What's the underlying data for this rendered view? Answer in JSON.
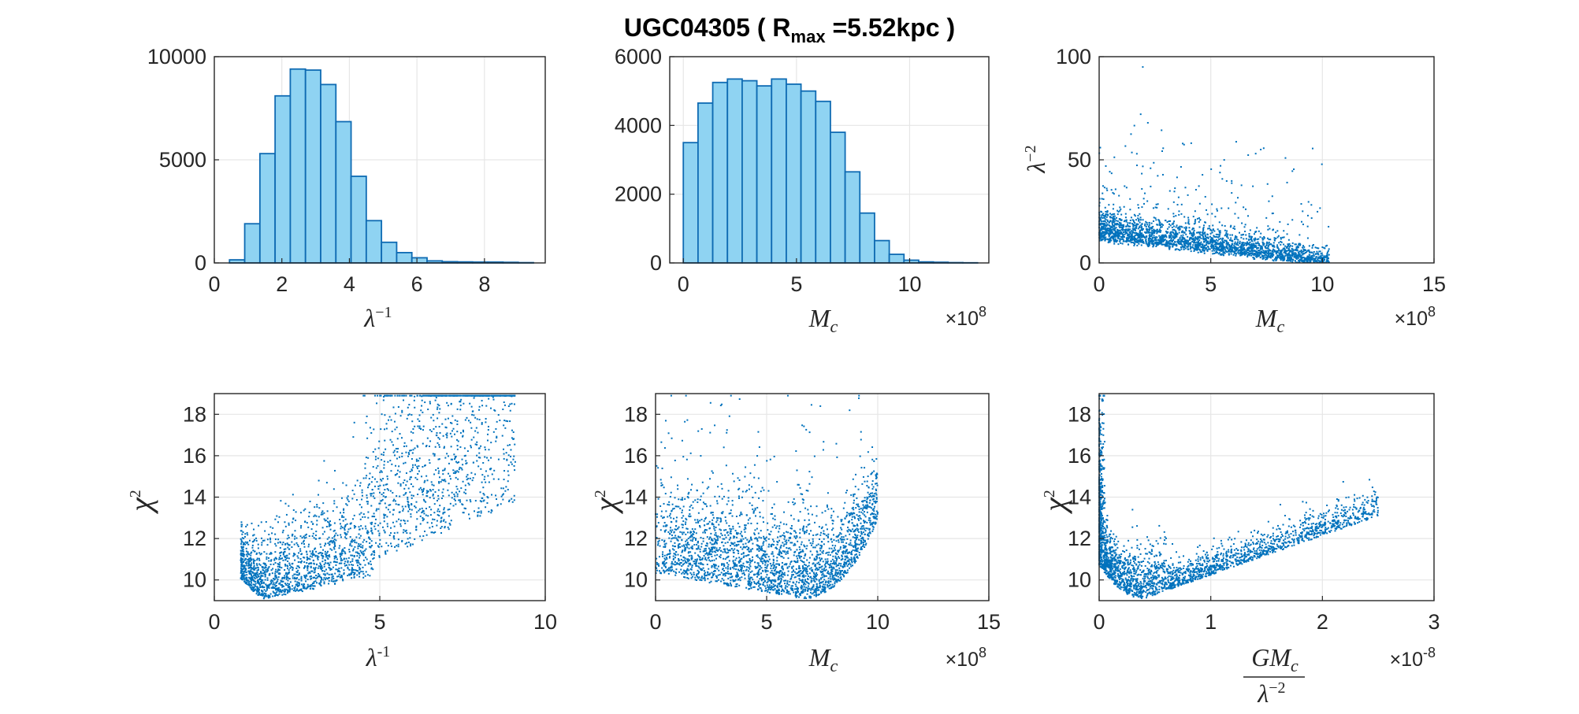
{
  "figure_title": {
    "prefix": "UGC04305  (  R",
    "subscript": "max",
    "suffix": "  =5.52kpc  )"
  },
  "colors": {
    "bar_fill": "#8fd3f2",
    "bar_edge": "#0f6bb3",
    "scatter": "#0072bd",
    "grid": "#e6e6e6",
    "axes": "#262626"
  },
  "chart_data": [
    {
      "id": "hist-lambda-inv",
      "type": "bar",
      "xlabel_base": "λ",
      "xlabel_sup": "−1",
      "bin_width": 0.45,
      "bin_starts": [
        0.45,
        0.9,
        1.35,
        1.8,
        2.25,
        2.7,
        3.15,
        3.6,
        4.05,
        4.5,
        4.95,
        5.4,
        5.85,
        6.3,
        6.75,
        7.2,
        7.65,
        8.1,
        8.55,
        9.0
      ],
      "values": [
        150,
        1900,
        5300,
        8100,
        9400,
        9350,
        8650,
        6850,
        4200,
        2050,
        1000,
        500,
        250,
        100,
        60,
        50,
        40,
        40,
        30,
        15
      ],
      "xlim": [
        0,
        9.8
      ],
      "ylim": [
        0,
        10000
      ],
      "xticks": [
        0,
        2,
        4,
        6,
        8
      ],
      "xtick_labels": [
        "0",
        "2",
        "4",
        "6",
        "8"
      ],
      "yticks": [
        0,
        5000,
        10000
      ],
      "ytick_labels": [
        "0",
        "5000",
        "10000"
      ],
      "grid": true
    },
    {
      "id": "hist-mc",
      "type": "bar",
      "xlabel_base": "M",
      "xlabel_sub": "c",
      "multiplier": "×10",
      "multiplier_exp": "8",
      "bin_width": 0.65,
      "bin_starts": [
        0,
        0.65,
        1.3,
        1.95,
        2.6,
        3.25,
        3.9,
        4.55,
        5.2,
        5.85,
        6.5,
        7.15,
        7.8,
        8.45,
        9.1,
        9.75,
        10.4,
        11.05,
        11.7,
        12.35
      ],
      "values": [
        3500,
        4650,
        5250,
        5350,
        5300,
        5150,
        5350,
        5200,
        5000,
        4700,
        3800,
        2650,
        1450,
        650,
        250,
        80,
        30,
        20,
        10,
        5
      ],
      "xlim": [
        -0.6,
        13.5
      ],
      "ylim": [
        0,
        6000
      ],
      "xticks": [
        0,
        5,
        10
      ],
      "xtick_labels": [
        "0",
        "5",
        "10"
      ],
      "yticks": [
        0,
        2000,
        4000,
        6000
      ],
      "ytick_labels": [
        "0",
        "2000",
        "4000",
        "6000"
      ],
      "grid": true
    },
    {
      "id": "scatter-mc-lambda2",
      "type": "scatter",
      "xlabel_base": "M",
      "xlabel_sub": "c",
      "ylabel_base": "λ",
      "ylabel_sup": "−2",
      "multiplier": "×10",
      "multiplier_exp": "8",
      "xlim": [
        0,
        15
      ],
      "ylim": [
        0,
        100
      ],
      "xticks": [
        0,
        5,
        10,
        15
      ],
      "xtick_labels": [
        "0",
        "5",
        "10",
        "15"
      ],
      "yticks": [
        0,
        50,
        100
      ],
      "ytick_labels": [
        "0",
        "50",
        "100"
      ],
      "grid": true
    },
    {
      "id": "scatter-lambda-chi2",
      "type": "scatter",
      "xlabel_base": "λ",
      "xlabel_sup": "-1",
      "ylabel_base": "χ",
      "ylabel_sup": "2",
      "xlim": [
        0,
        10
      ],
      "ylim": [
        9,
        19
      ],
      "xticks": [
        0,
        5,
        10
      ],
      "xtick_labels": [
        "0",
        "5",
        "10"
      ],
      "yticks": [
        10,
        12,
        14,
        16,
        18
      ],
      "ytick_labels": [
        "10",
        "12",
        "14",
        "16",
        "18"
      ],
      "grid": true
    },
    {
      "id": "scatter-mc-chi2",
      "type": "scatter",
      "xlabel_base": "M",
      "xlabel_sub": "c",
      "ylabel_base": "χ",
      "ylabel_sup": "2",
      "multiplier": "×10",
      "multiplier_exp": "8",
      "xlim": [
        0,
        15
      ],
      "ylim": [
        9,
        19
      ],
      "xticks": [
        0,
        5,
        10,
        15
      ],
      "xtick_labels": [
        "0",
        "5",
        "10",
        "15"
      ],
      "yticks": [
        10,
        12,
        14,
        16,
        18
      ],
      "ytick_labels": [
        "10",
        "12",
        "14",
        "16",
        "18"
      ],
      "grid": true
    },
    {
      "id": "scatter-gmc-chi2",
      "type": "scatter",
      "xlabel_num": "GM",
      "xlabel_num_sub": "c",
      "xlabel_den": "λ",
      "xlabel_den_sup": "−2",
      "ylabel_base": "χ",
      "ylabel_sup": "2",
      "multiplier": "×10",
      "multiplier_exp": "-8",
      "xlim": [
        0,
        3
      ],
      "ylim": [
        9,
        19
      ],
      "xticks": [
        0,
        1,
        2,
        3
      ],
      "xtick_labels": [
        "0",
        "1",
        "2",
        "3"
      ],
      "yticks": [
        10,
        12,
        14,
        16,
        18
      ],
      "ytick_labels": [
        "10",
        "12",
        "14",
        "16",
        "18"
      ],
      "grid": true
    }
  ]
}
